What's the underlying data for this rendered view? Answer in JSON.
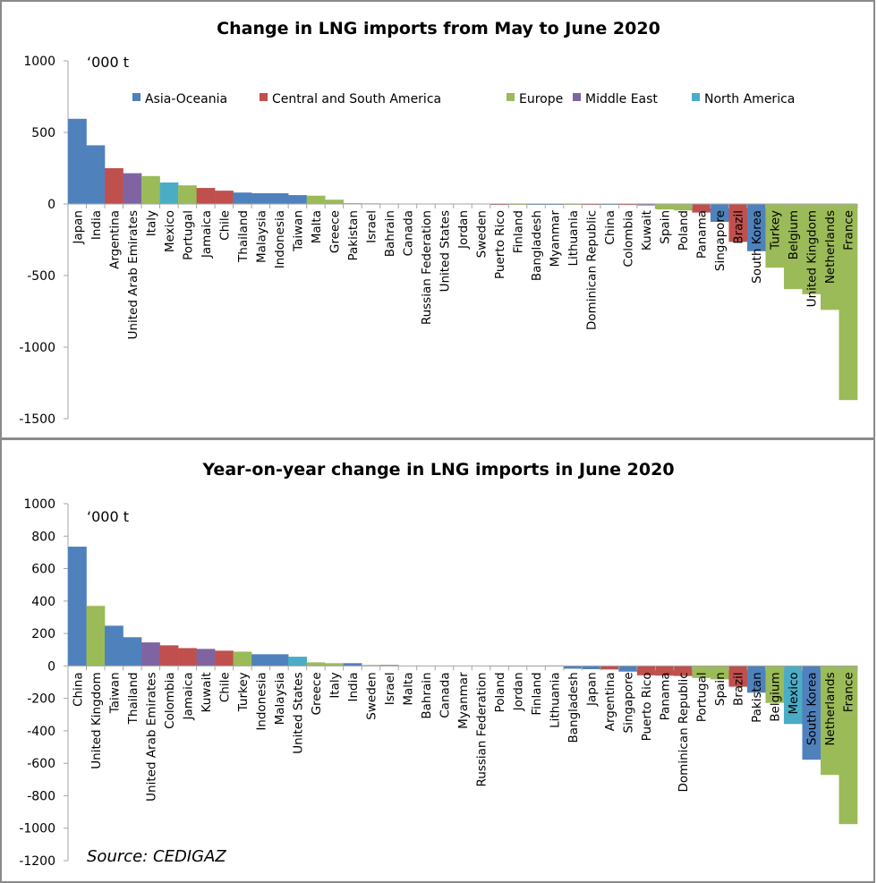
{
  "regions": {
    "Asia-Oceania": "#4f81bd",
    "Central and South America": "#c0504d",
    "Europe": "#9bbb59",
    "Middle East": "#8064a2",
    "North America": "#4bacc6"
  },
  "chart_data": [
    {
      "type": "bar",
      "title": "Change in LNG imports from May to June 2020",
      "unit_label": "‘000 t",
      "xlabel": "",
      "ylabel": "‘000 t",
      "ylim": [
        -1500,
        1000
      ],
      "yticks": [
        1000,
        500,
        0,
        -500,
        -1000,
        -1500
      ],
      "grid": false,
      "legend": {
        "placement": "top",
        "entries": [
          "Asia-Oceania",
          "Central and South America",
          "Europe",
          "Middle East",
          "North America"
        ]
      },
      "categories": [
        "Japan",
        "India",
        "Argentina",
        "United Arab Emirates",
        "Italy",
        "Mexico",
        "Portugal",
        "Jamaica",
        "Chile",
        "Thailand",
        "Malaysia",
        "Indonesia",
        "Taiwan",
        "Malta",
        "Greece",
        "Pakistan",
        "Israel",
        "Bahrain",
        "Canada",
        "Russian Federation",
        "United States",
        "Jordan",
        "Sweden",
        "Puerto Rico",
        "Finland",
        "Bangladesh",
        "Myanmar",
        "Lithuania",
        "Dominican Republic",
        "China",
        "Colombia",
        "Kuwait",
        "Spain",
        "Poland",
        "Panama",
        "Singapore",
        "Brazil",
        "South Korea",
        "Turkey",
        "Belgium",
        "United Kingdom",
        "Netherlands",
        "France"
      ],
      "region_of": [
        "Asia-Oceania",
        "Asia-Oceania",
        "Central and South America",
        "Middle East",
        "Europe",
        "North America",
        "Europe",
        "Central and South America",
        "Central and South America",
        "Asia-Oceania",
        "Asia-Oceania",
        "Asia-Oceania",
        "Asia-Oceania",
        "Europe",
        "Europe",
        "Asia-Oceania",
        "Middle East",
        "Middle East",
        "North America",
        "Europe",
        "North America",
        "Middle East",
        "Europe",
        "Central and South America",
        "Europe",
        "Asia-Oceania",
        "Asia-Oceania",
        "Europe",
        "Central and South America",
        "Asia-Oceania",
        "Central and South America",
        "Middle East",
        "Europe",
        "Europe",
        "Central and South America",
        "Asia-Oceania",
        "Central and South America",
        "Asia-Oceania",
        "Europe",
        "Europe",
        "Europe",
        "Europe",
        "Europe"
      ],
      "values": [
        595,
        410,
        250,
        215,
        195,
        150,
        130,
        112,
        93,
        80,
        75,
        75,
        62,
        58,
        30,
        5,
        4,
        0,
        0,
        0,
        0,
        0,
        0,
        -3,
        -3,
        -4,
        -4,
        -4,
        -5,
        -6,
        -7,
        -10,
        -38,
        -45,
        -60,
        -125,
        -265,
        -330,
        -445,
        -595,
        -630,
        -740,
        -1370
      ]
    },
    {
      "type": "bar",
      "title": "Year-on-year change in LNG imports in June 2020",
      "unit_label": "‘000 t",
      "xlabel": "",
      "ylabel": "‘000 t",
      "ylim": [
        -1200,
        1000
      ],
      "yticks": [
        1000,
        800,
        600,
        400,
        200,
        0,
        -200,
        -400,
        -600,
        -800,
        -1000,
        -1200
      ],
      "grid": false,
      "source": "Source: CEDIGAZ",
      "categories": [
        "China",
        "United Kingdom",
        "Taiwan",
        "Thailand",
        "United Arab Emirates",
        "Colombia",
        "Jamaica",
        "Kuwait",
        "Chile",
        "Turkey",
        "Indonesia",
        "Malaysia",
        "United States",
        "Greece",
        "Italy",
        "India",
        "Sweden",
        "Israel",
        "Malta",
        "Bahrain",
        "Canada",
        "Myanmar",
        "Russian Federation",
        "Poland",
        "Jordan",
        "Finland",
        "Lithuania",
        "Bangladesh",
        "Japan",
        "Argentina",
        "Singapore",
        "Puerto Rico",
        "Panama",
        "Dominican Republic",
        "Portugal",
        "Spain",
        "Brazil",
        "Pakistan",
        "Belgium",
        "Mexico",
        "South Korea",
        "Netherlands",
        "France"
      ],
      "region_of": [
        "Asia-Oceania",
        "Europe",
        "Asia-Oceania",
        "Asia-Oceania",
        "Middle East",
        "Central and South America",
        "Central and South America",
        "Middle East",
        "Central and South America",
        "Europe",
        "Asia-Oceania",
        "Asia-Oceania",
        "North America",
        "Europe",
        "Europe",
        "Asia-Oceania",
        "Europe",
        "Middle East",
        "Europe",
        "Middle East",
        "North America",
        "Asia-Oceania",
        "Europe",
        "Europe",
        "Middle East",
        "Europe",
        "Europe",
        "Asia-Oceania",
        "Asia-Oceania",
        "Central and South America",
        "Asia-Oceania",
        "Central and South America",
        "Central and South America",
        "Central and South America",
        "Europe",
        "Europe",
        "Central and South America",
        "Asia-Oceania",
        "Europe",
        "North America",
        "Asia-Oceania",
        "Europe",
        "Europe"
      ],
      "values": [
        735,
        370,
        248,
        177,
        145,
        127,
        110,
        105,
        94,
        88,
        72,
        72,
        57,
        22,
        17,
        17,
        6,
        6,
        0,
        0,
        0,
        0,
        0,
        2,
        2,
        2,
        3,
        -17,
        -20,
        -22,
        -35,
        -58,
        -60,
        -62,
        -74,
        -83,
        -128,
        -165,
        -228,
        -358,
        -578,
        -672,
        -975
      ]
    }
  ]
}
